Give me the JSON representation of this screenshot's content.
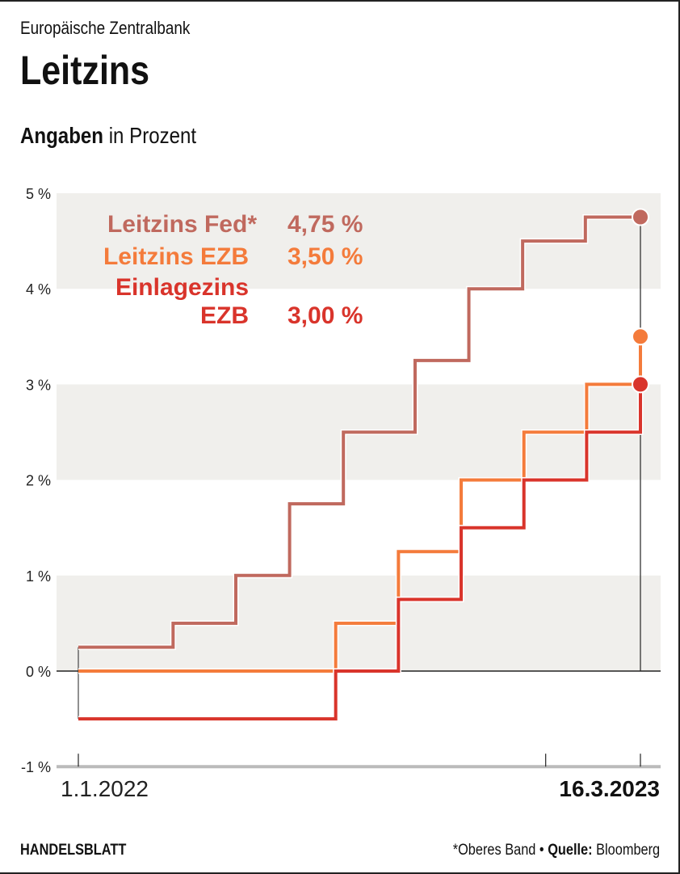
{
  "header": {
    "supertitle": "Europäische Zentralbank",
    "title": "Leitzins",
    "subtitle_bold": "Angaben",
    "subtitle_rest": "in Prozent"
  },
  "footer": {
    "brand": "HANDELSBLATT",
    "note": "*Oberes Band",
    "bullet": "•",
    "source_label": "Quelle:",
    "source": "Bloomberg"
  },
  "chart_data": {
    "type": "line",
    "subtype": "step",
    "title": "Leitzins",
    "ylabel": "Angaben in Prozent",
    "ylim": [
      -1,
      5
    ],
    "yticks": [
      5,
      4,
      3,
      2,
      1,
      0,
      -1
    ],
    "ytick_labels": [
      "5 %",
      "4 %",
      "3 %",
      "2 %",
      "1 %",
      "0 %",
      "-1 %"
    ],
    "xlim": [
      "2022-01-01",
      "2023-03-16"
    ],
    "xticks": [
      "2022-01-01",
      "2023-01-01",
      "2023-03-16"
    ],
    "xtick_labels": {
      "start": "1.1.2022",
      "end": "16.3.2023"
    },
    "shaded_bands": [
      [
        4,
        5
      ],
      [
        2,
        3
      ],
      [
        0,
        1
      ]
    ],
    "series": [
      {
        "name": "Leitzins Fed*",
        "value_label": "4,75 %",
        "color": "#c0695e",
        "steps": [
          [
            "2022-01-01",
            0.25
          ],
          [
            "2022-03-16",
            0.5
          ],
          [
            "2022-05-04",
            1.0
          ],
          [
            "2022-06-15",
            1.75
          ],
          [
            "2022-07-27",
            2.5
          ],
          [
            "2022-09-21",
            3.25
          ],
          [
            "2022-11-02",
            4.0
          ],
          [
            "2022-12-14",
            4.5
          ],
          [
            "2023-02-01",
            4.75
          ]
        ]
      },
      {
        "name": "Leitzins EZB",
        "value_label": "3,50 %",
        "color": "#f47b3b",
        "steps": [
          [
            "2022-01-01",
            0.0
          ],
          [
            "2022-07-21",
            0.5
          ],
          [
            "2022-09-08",
            1.25
          ],
          [
            "2022-10-27",
            2.0
          ],
          [
            "2022-12-15",
            2.5
          ],
          [
            "2023-02-02",
            3.0
          ],
          [
            "2023-03-16",
            3.5
          ]
        ]
      },
      {
        "name": "Einlagezins EZB",
        "name_line1": "Einlagezins",
        "name_line2": "EZB",
        "value_label": "3,00 %",
        "color": "#d9342b",
        "steps": [
          [
            "2022-01-01",
            -0.5
          ],
          [
            "2022-07-21",
            0.0
          ],
          [
            "2022-09-08",
            0.75
          ],
          [
            "2022-10-27",
            1.5
          ],
          [
            "2022-12-15",
            2.0
          ],
          [
            "2023-02-02",
            2.5
          ],
          [
            "2023-03-16",
            3.0
          ]
        ]
      }
    ]
  }
}
